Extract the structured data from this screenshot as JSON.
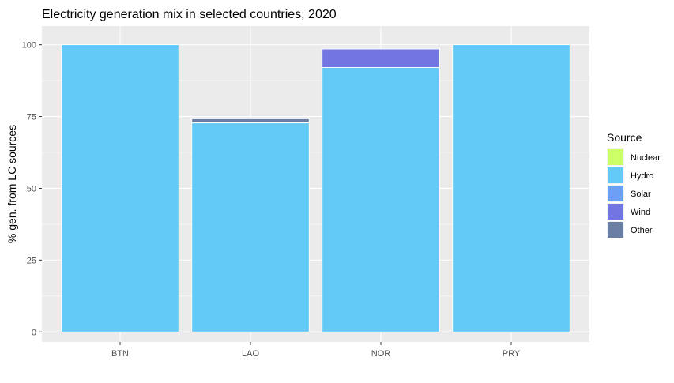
{
  "chart_data": {
    "type": "bar",
    "stacked": true,
    "title": "Electricity generation mix in selected countries, 2020",
    "xlabel": "",
    "ylabel": "% gen. from LC sources",
    "ylim": [
      -3.5,
      106.5
    ],
    "yticks": [
      0,
      25,
      50,
      75,
      100
    ],
    "grid": true,
    "legend_position": "right",
    "categories": [
      "BTN",
      "LAO",
      "NOR",
      "PRY"
    ],
    "legend": {
      "title": "Source",
      "entries": [
        "Nuclear",
        "Hydro",
        "Solar",
        "Wind",
        "Other"
      ]
    },
    "series": [
      {
        "name": "Nuclear",
        "color": "#CCFF66",
        "values": [
          0,
          0,
          0,
          0
        ]
      },
      {
        "name": "Hydro",
        "color": "#63CAF8",
        "values": [
          100,
          72.8,
          92.1,
          100
        ]
      },
      {
        "name": "Solar",
        "color": "#6CA0F5",
        "values": [
          0,
          0.1,
          0,
          0
        ]
      },
      {
        "name": "Wind",
        "color": "#7375E3",
        "values": [
          0,
          0,
          6.4,
          0
        ]
      },
      {
        "name": "Other",
        "color": "#6A7FA3",
        "values": [
          0,
          1.3,
          0,
          0
        ]
      }
    ]
  }
}
